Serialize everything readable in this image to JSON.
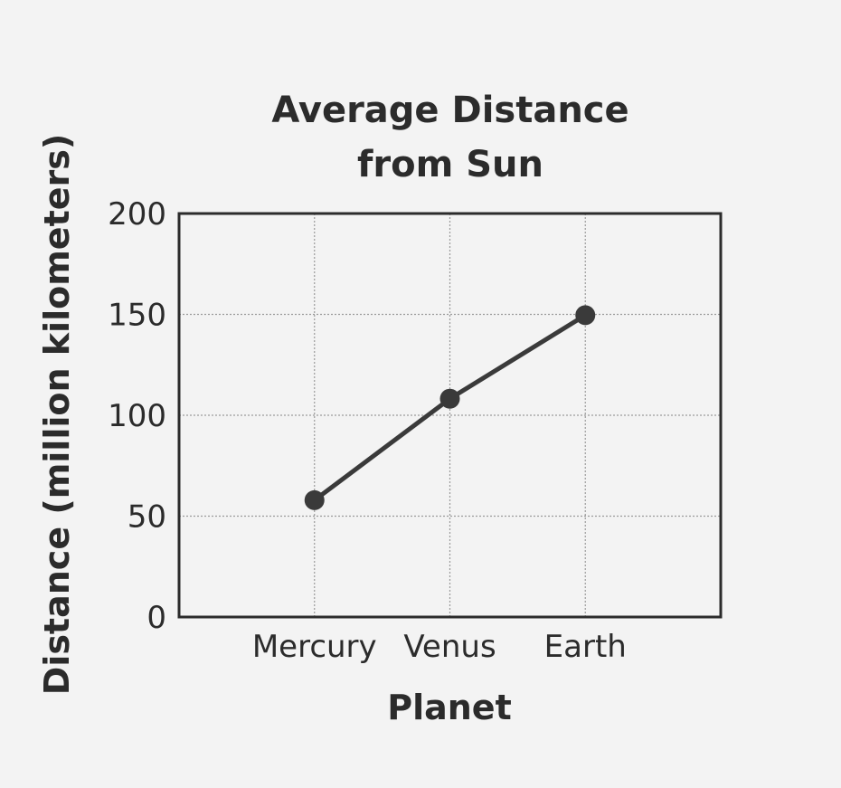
{
  "chart_data": {
    "type": "line",
    "title_lines": [
      "Average Distance",
      "from Sun"
    ],
    "xlabel": "Planet",
    "ylabel": "Distance (million kilometers)",
    "categories": [
      "Mercury",
      "Venus",
      "Earth"
    ],
    "series": [
      {
        "values": [
          57.9,
          108.2,
          149.6
        ]
      }
    ],
    "ylim": [
      0,
      200
    ],
    "yticks": [
      0,
      50,
      100,
      150,
      200
    ],
    "grid": true,
    "legend": "none",
    "colors": {
      "line": "#3a3a3a",
      "marker": "#3a3a3a",
      "grid": "#9a9a9a",
      "frame": "#2b2b2b"
    }
  }
}
